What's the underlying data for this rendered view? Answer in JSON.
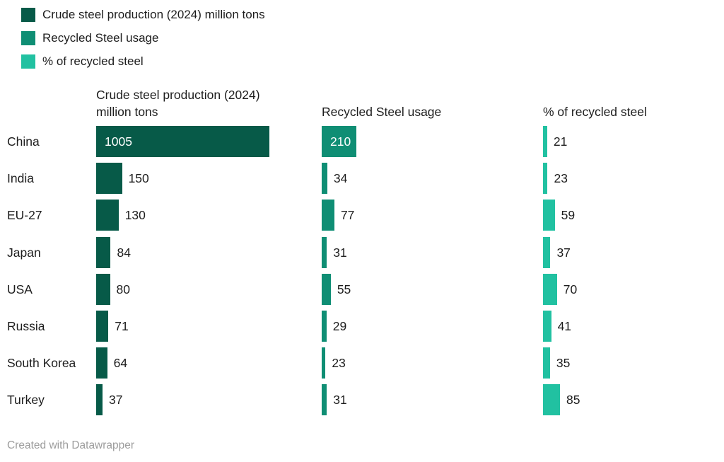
{
  "legend": {
    "items": [
      {
        "label": "Crude steel production (2024) million tons",
        "color": "#075a48"
      },
      {
        "label": "Recycled Steel usage",
        "color": "#0f8e74"
      },
      {
        "label": "% of recycled steel",
        "color": "#21c1a1"
      }
    ]
  },
  "chart_data": {
    "type": "bar",
    "orientation": "horizontal",
    "title": "",
    "categories": [
      "China",
      "India",
      "EU-27",
      "Japan",
      "USA",
      "Russia",
      "South Korea",
      "Turkey"
    ],
    "series": [
      {
        "name": "Crude steel production (2024) million tons",
        "color": "#075a48",
        "values": [
          1005,
          150,
          130,
          84,
          80,
          71,
          64,
          37
        ],
        "max": 1005
      },
      {
        "name": "Recycled Steel usage",
        "color": "#0f8e74",
        "values": [
          210,
          34,
          77,
          31,
          55,
          29,
          23,
          31
        ],
        "max": 210
      },
      {
        "name": "% of recycled steel",
        "color": "#21c1a1",
        "values": [
          21,
          23,
          59,
          37,
          70,
          41,
          35,
          85
        ],
        "max": 85
      }
    ],
    "value_labels_shown": true,
    "legend_position": "top-left",
    "grid": false
  },
  "footer": {
    "credit": "Created with Datawrapper"
  }
}
